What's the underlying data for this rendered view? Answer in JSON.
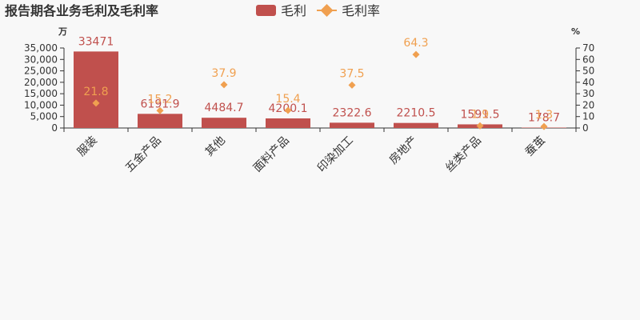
{
  "chart_data": {
    "type": "bar",
    "title": "报告期各业务毛利及毛利率",
    "categories": [
      "服装",
      "五金产品",
      "其他",
      "面料产品",
      "印染加工",
      "房地产",
      "丝类产品",
      "蚕茧"
    ],
    "series": [
      {
        "name": "毛利",
        "type": "bar",
        "axis": "left",
        "color": "#c0504d",
        "values": [
          33471,
          6191.9,
          4484.7,
          4200.1,
          2322.6,
          2210.5,
          1591.5,
          178.7
        ],
        "labels": [
          "33471",
          "6191.9",
          "4484.7",
          "4200.1",
          "2322.6",
          "2210.5",
          "1591.5",
          "178.7"
        ]
      },
      {
        "name": "毛利率",
        "type": "scatter",
        "marker": "diamond",
        "axis": "right",
        "color": "#f0a050",
        "values": [
          21.8,
          15.2,
          37.9,
          15.4,
          37.5,
          64.3,
          1.9,
          1.3
        ],
        "labels": [
          "21.8",
          "15.2",
          "37.9",
          "15.4",
          "37.5",
          "64.3",
          "1.9",
          "1.3"
        ]
      }
    ],
    "y_left": {
      "unit": "万",
      "ylim": [
        0,
        35000
      ],
      "ticks": [
        0,
        5000,
        10000,
        15000,
        20000,
        25000,
        30000,
        35000
      ],
      "tick_labels": [
        "0",
        "5,000",
        "10,000",
        "15,000",
        "20,000",
        "25,000",
        "30,000",
        "35,000"
      ]
    },
    "y_right": {
      "unit": "%",
      "ylim": [
        0,
        70
      ],
      "ticks": [
        0,
        10,
        20,
        30,
        40,
        50,
        60,
        70
      ],
      "tick_labels": [
        "0",
        "10",
        "20",
        "30",
        "40",
        "50",
        "60",
        "70"
      ]
    },
    "legend_placement": "top-center",
    "grid": false
  }
}
